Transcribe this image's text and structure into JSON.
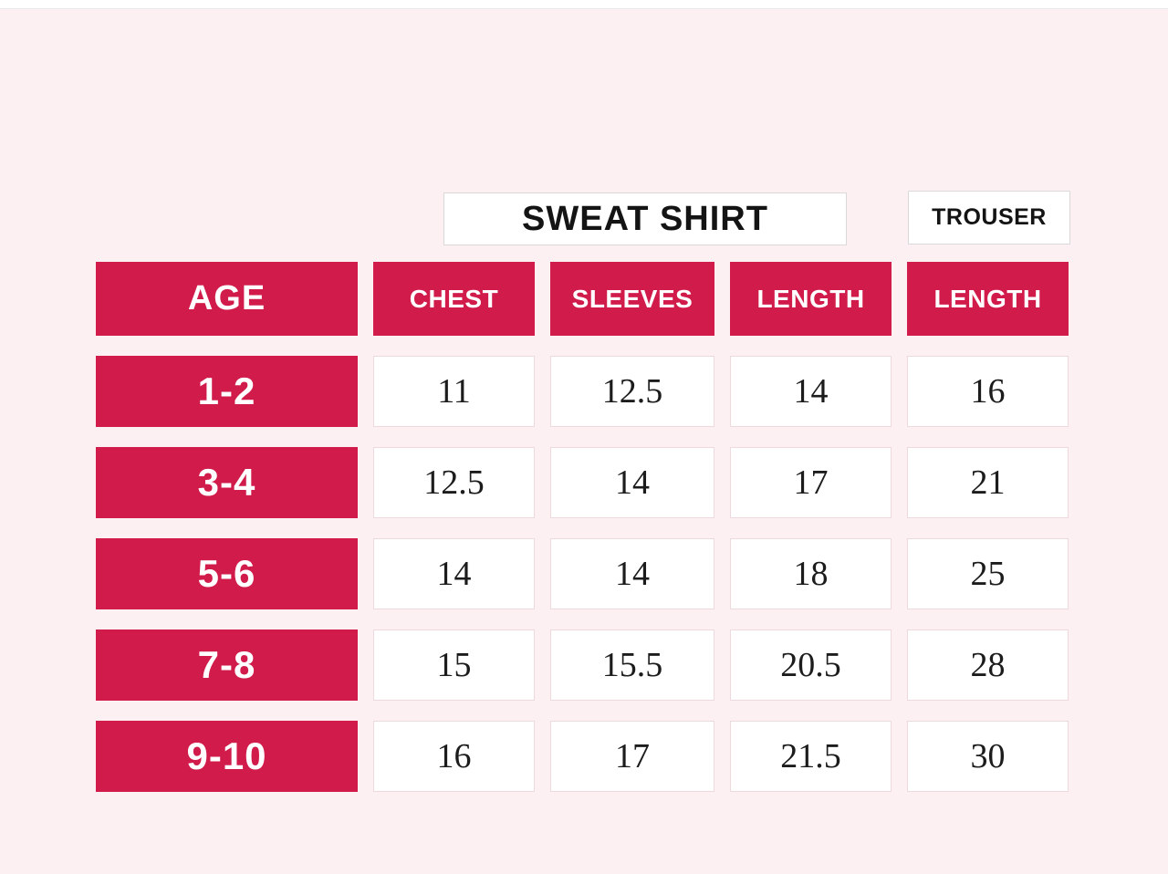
{
  "colors": {
    "accent": "#d01b4b",
    "background": "#fdf0f2",
    "cell_background": "#ffffff",
    "cell_border": "#eedadd",
    "title_border": "#d9d9d9",
    "header_text": "#ffffff",
    "value_text": "#1c1c1c"
  },
  "chart_data": {
    "type": "table",
    "title": "SWEAT SHIRT",
    "secondary_title": "TROUSER",
    "age_label": "AGE",
    "groups": [
      {
        "label": "SWEAT SHIRT",
        "columns": [
          "CHEST",
          "SLEEVES",
          "LENGTH"
        ]
      },
      {
        "label": "TROUSER",
        "columns": [
          "LENGTH"
        ]
      }
    ],
    "rows": [
      {
        "age": "1-2",
        "values": [
          "11",
          "12.5",
          "14",
          "16"
        ]
      },
      {
        "age": "3-4",
        "values": [
          "12.5",
          "14",
          "17",
          "21"
        ]
      },
      {
        "age": "5-6",
        "values": [
          "14",
          "14",
          "18",
          "25"
        ]
      },
      {
        "age": "7-8",
        "values": [
          "15",
          "15.5",
          "20.5",
          "28"
        ]
      },
      {
        "age": "9-10",
        "values": [
          "16",
          "17",
          "21.5",
          "30"
        ]
      }
    ]
  }
}
